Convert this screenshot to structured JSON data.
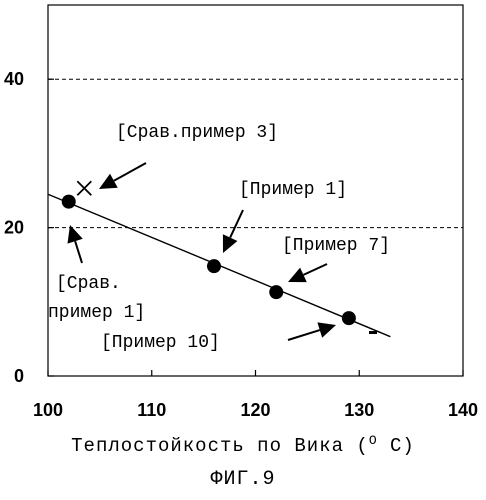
{
  "chart_data": {
    "type": "scatter",
    "xlabel": "Теплостойкость по Вика (",
    "xlabel_unit": "C)",
    "xlabel_degree": "O",
    "caption": "ФИГ.9",
    "xlim": [
      100,
      140
    ],
    "ylim": [
      0,
      50
    ],
    "xticks": [
      100,
      110,
      120,
      130,
      140
    ],
    "yticks": [
      0,
      20,
      40
    ],
    "grid": "dashed horizontal at y=20 and y=40",
    "series": [
      {
        "points": [
          {
            "x": 102,
            "y": 23.5,
            "marker": "circle",
            "label": "[Срав.\nпример 1]"
          },
          {
            "x": 116,
            "y": 14.8,
            "marker": "circle",
            "label": "[Пример 1]"
          },
          {
            "x": 122,
            "y": 11.3,
            "marker": "circle",
            "label": "[Пример 7]"
          },
          {
            "x": 129,
            "y": 7.8,
            "marker": "circle",
            "label": "[Пример 10]"
          },
          {
            "x": 103.5,
            "y": 25.3,
            "marker": "cross",
            "label": "[Срав.пример 3]"
          }
        ]
      }
    ],
    "trendline": {
      "x": [
        100,
        133
      ],
      "y": [
        24.5,
        5.3
      ]
    },
    "annotations": {
      "comp3": "[Срав.пример 3]",
      "ex1": "[Пример 1]",
      "ex7": "[Пример 7]",
      "ex10": "[Пример 10]",
      "comp1_line1": "[Срав.",
      "comp1_line2": "пример 1]"
    }
  }
}
